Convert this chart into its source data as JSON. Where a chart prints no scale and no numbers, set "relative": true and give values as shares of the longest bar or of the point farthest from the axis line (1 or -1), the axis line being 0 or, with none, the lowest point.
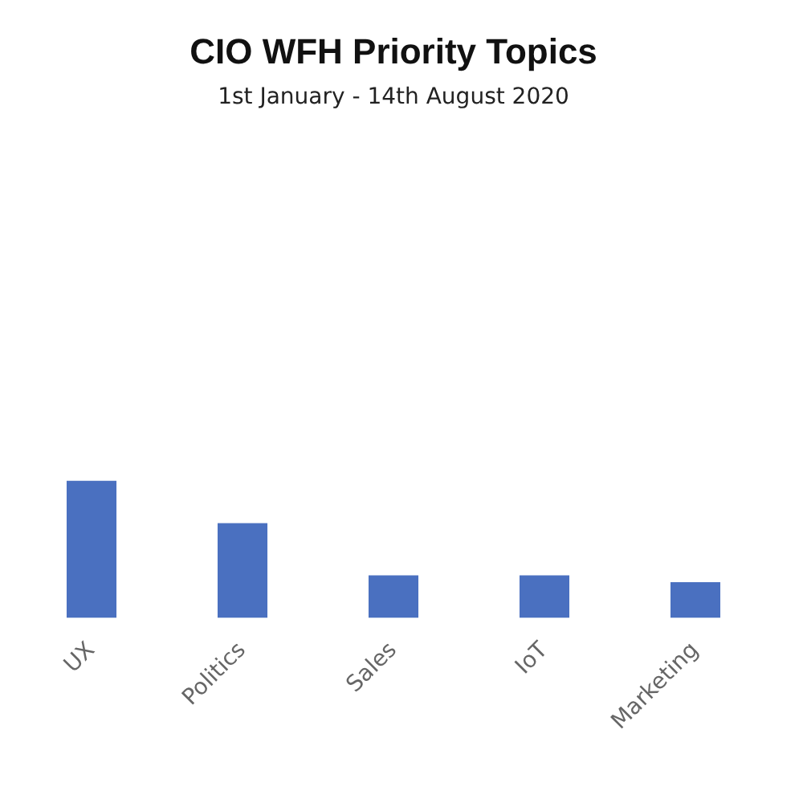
{
  "chart_data": {
    "type": "bar",
    "title": "CIO WFH Priority Topics",
    "subtitle": "1st January - 14th August 2020",
    "categories": [
      "UX",
      "Politics",
      "Sales",
      "IoT",
      "Marketing"
    ],
    "values": [
      1,
      0.69,
      0.31,
      0.31,
      0.26
    ],
    "color": "#4a70c0",
    "relative": true,
    "grid": false,
    "legend": false
  }
}
